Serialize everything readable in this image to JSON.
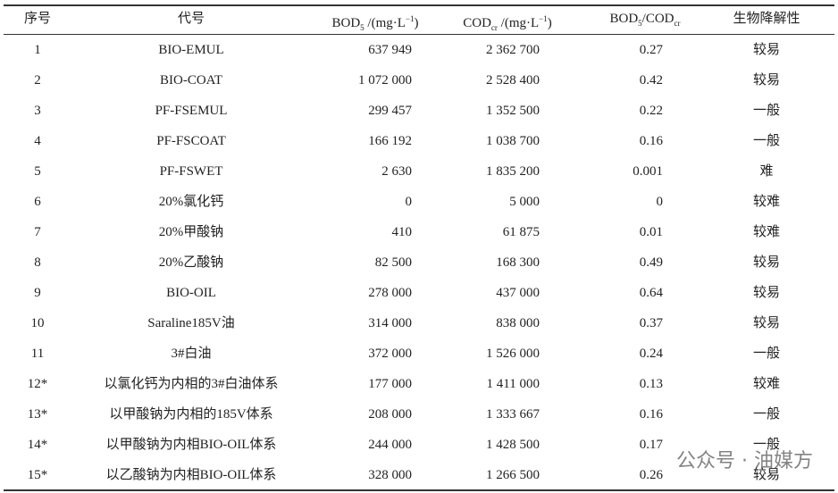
{
  "table": {
    "header": [
      [
        {
          "text": "序号"
        }
      ],
      [
        {
          "text": "代号"
        }
      ],
      [
        {
          "text": "BOD"
        },
        {
          "text": "5",
          "sub": true
        },
        {
          "text": " /(mg·L"
        },
        {
          "text": "−1",
          "sup": true
        },
        {
          "text": ")"
        }
      ],
      [
        {
          "text": "COD"
        },
        {
          "text": "cr",
          "sub": true
        },
        {
          "text": " /(mg·L"
        },
        {
          "text": "−1",
          "sup": true
        },
        {
          "text": ")"
        }
      ],
      [
        {
          "text": "BOD"
        },
        {
          "text": "5",
          "sub": true
        },
        {
          "text": "/COD"
        },
        {
          "text": "cr",
          "sub": true
        }
      ],
      [
        {
          "text": "生物降解性"
        }
      ]
    ],
    "rows": [
      [
        "1",
        "BIO-EMUL",
        "637 949",
        "2 362 700",
        "0.27",
        "较易"
      ],
      [
        "2",
        "BIO-COAT",
        "1 072 000",
        "2 528 400",
        "0.42",
        "较易"
      ],
      [
        "3",
        "PF-FSEMUL",
        "299 457",
        "1 352 500",
        "0.22",
        "一般"
      ],
      [
        "4",
        "PF-FSCOAT",
        "166 192",
        "1 038 700",
        "0.16",
        "一般"
      ],
      [
        "5",
        "PF-FSWET",
        "2 630",
        "1 835 200",
        "0.001",
        "难"
      ],
      [
        "6",
        "20%氯化钙",
        "0",
        "5 000",
        "0",
        "较难"
      ],
      [
        "7",
        "20%甲酸钠",
        "410",
        "61 875",
        "0.01",
        "较难"
      ],
      [
        "8",
        "20%乙酸钠",
        "82 500",
        "168 300",
        "0.49",
        "较易"
      ],
      [
        "9",
        "BIO-OIL",
        "278 000",
        "437 000",
        "0.64",
        "较易"
      ],
      [
        "10",
        "Saraline185V油",
        "314 000",
        "838 000",
        "0.37",
        "较易"
      ],
      [
        "11",
        "3#白油",
        "372 000",
        "1 526 000",
        "0.24",
        "一般"
      ],
      [
        "12*",
        "以氯化钙为内相的3#白油体系",
        "177 000",
        "1 411 000",
        "0.13",
        "较难"
      ],
      [
        "13*",
        "以甲酸钠为内相的185V体系",
        "208 000",
        "1 333 667",
        "0.16",
        "一般"
      ],
      [
        "14*",
        "以甲酸钠为内相BIO-OIL体系",
        "244 000",
        "1 428 500",
        "0.17",
        "一般"
      ],
      [
        "15*",
        "以乙酸钠为内相BIO-OIL体系",
        "328 000",
        "1 266 500",
        "0.26",
        "较易"
      ]
    ]
  },
  "watermark": "公众号 · 油媒方"
}
